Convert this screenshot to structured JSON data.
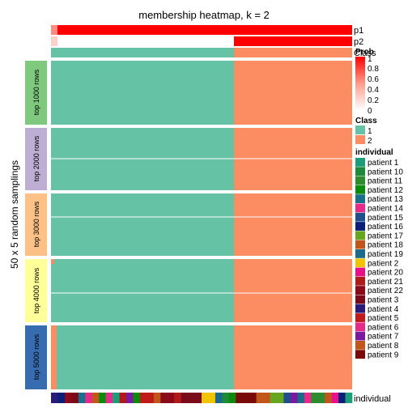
{
  "chart_data": {
    "type": "heatmap",
    "title": "membership heatmap, k = 2",
    "ylabel": "50 x 5 random samplings",
    "top_annotations": [
      {
        "name": "p1",
        "values_left": 1.0,
        "values_right": 0.0
      },
      {
        "name": "p2",
        "values_left": 0.0,
        "values_right": 1.0
      },
      {
        "name": "Class",
        "values_left": 1,
        "values_right": 2
      }
    ],
    "bottom_annotation": {
      "name": "individual"
    },
    "groups": [
      {
        "label": "top 1000 rows",
        "color": "#7fc97f"
      },
      {
        "label": "top 2000 rows",
        "color": "#beaed4"
      },
      {
        "label": "top 3000 rows",
        "color": "#fdc086"
      },
      {
        "label": "top 4000 rows",
        "color": "#ffff99"
      },
      {
        "label": "top 5000 rows",
        "color": "#386cb0"
      }
    ],
    "columns": {
      "class1_fraction": 0.62,
      "class2_fraction": 0.38
    },
    "class_colors": {
      "1": "#66c2a5",
      "2": "#fc8d62"
    },
    "prob_legend": {
      "title": "Prob",
      "ticks": [
        "1",
        "0.8",
        "0.6",
        "0.4",
        "0.2",
        "0"
      ]
    },
    "class_legend": {
      "title": "Class",
      "entries": [
        "1",
        "2"
      ]
    },
    "individual_legend": {
      "title": "individual",
      "entries": [
        {
          "label": "patient 1",
          "color": "#1b9e77"
        },
        {
          "label": "patient 10",
          "color": "#1d8a3a"
        },
        {
          "label": "patient 11",
          "color": "#2e8b2e"
        },
        {
          "label": "patient 12",
          "color": "#0b8a0b"
        },
        {
          "label": "patient 13",
          "color": "#1a6f8a"
        },
        {
          "label": "patient 14",
          "color": "#e7298a"
        },
        {
          "label": "patient 15",
          "color": "#1f4e8c"
        },
        {
          "label": "patient 16",
          "color": "#0b1f7a"
        },
        {
          "label": "patient 17",
          "color": "#66a61e"
        },
        {
          "label": "patient 18",
          "color": "#c2561a"
        },
        {
          "label": "patient 19",
          "color": "#1a6b8a"
        },
        {
          "label": "patient 2",
          "color": "#f0c400"
        },
        {
          "label": "patient 20",
          "color": "#e7108a"
        },
        {
          "label": "patient 21",
          "color": "#b01a1a"
        },
        {
          "label": "patient 22",
          "color": "#8a0a1a"
        },
        {
          "label": "patient 3",
          "color": "#7a0a1a"
        },
        {
          "label": "patient 4",
          "color": "#2a1a7a"
        },
        {
          "label": "patient 5",
          "color": "#c01a1a"
        },
        {
          "label": "patient 6",
          "color": "#e7298a"
        },
        {
          "label": "patient 7",
          "color": "#7a1aa0"
        },
        {
          "label": "patient 8",
          "color": "#c2561a"
        },
        {
          "label": "patient 9",
          "color": "#7a0a0a"
        }
      ]
    }
  }
}
